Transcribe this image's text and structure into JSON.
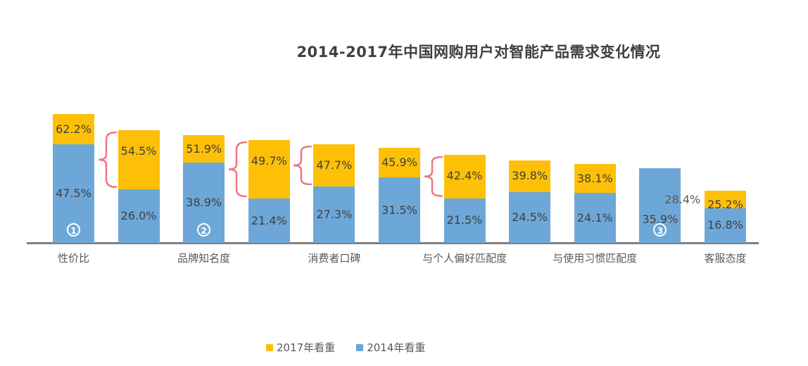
{
  "title": "2014-2017年中国网购用户对智能产品需求变化情况",
  "legend": [
    {
      "label": "2017年看重",
      "color": "#fdc006"
    },
    {
      "label": "2014年看重",
      "color": "#6da7d8"
    }
  ],
  "colors": {
    "series_2017": "#fdc006",
    "series_2014": "#6da7d8",
    "axis": "#808080",
    "brace": "#ee7583",
    "label_dark": "#404040",
    "label_gray": "#595959"
  },
  "chart_data": {
    "type": "bar",
    "subtype": "stacked-overlap, 11 bars grouped in pairs per category (last category pair: one stacked bar + one blue-only bar)",
    "title": "2014-2017年中国网购用户对智能产品需求变化情况",
    "categories": [
      "性价比",
      "品牌知名度",
      "消费者口碑",
      "与个人偏好匹配度",
      "与使用习惯匹配度",
      "客服态度"
    ],
    "series": [
      {
        "name": "2017年看重",
        "color": "#fdc006",
        "values": [
          62.2,
          54.5,
          51.9,
          49.7,
          47.7,
          45.9,
          42.4,
          39.8,
          38.1,
          28.4,
          25.2
        ]
      },
      {
        "name": "2014年看重",
        "color": "#6da7d8",
        "values": [
          47.5,
          26.0,
          38.9,
          21.4,
          27.3,
          31.5,
          21.5,
          24.5,
          24.1,
          35.9,
          16.8
        ]
      }
    ],
    "data_labels": {
      "series_2017": [
        "62.2%",
        "54.5%",
        "51.9%",
        "49.7%",
        "47.7%",
        "45.9%",
        "42.4%",
        "39.8%",
        "38.1%",
        "28.4%",
        "25.2%"
      ],
      "series_2014": [
        "47.5%",
        "26.0%",
        "38.9%",
        "21.4%",
        "27.3%",
        "31.5%",
        "21.5%",
        "24.5%",
        "24.1%",
        "35.9%",
        "16.8%"
      ]
    },
    "annotations": {
      "circled_markers": [
        {
          "bar_index": 0,
          "symbol": "①",
          "digit": "1"
        },
        {
          "bar_index": 2,
          "symbol": "②",
          "digit": "2"
        },
        {
          "bar_index": 9,
          "symbol": "③",
          "digit": "3"
        }
      ],
      "brace_left_of_bar_index": [
        1,
        3,
        4,
        6
      ]
    },
    "legend_position": "bottom",
    "grid": false,
    "y_axis_visible": false,
    "ylim": [
      0,
      70
    ]
  }
}
